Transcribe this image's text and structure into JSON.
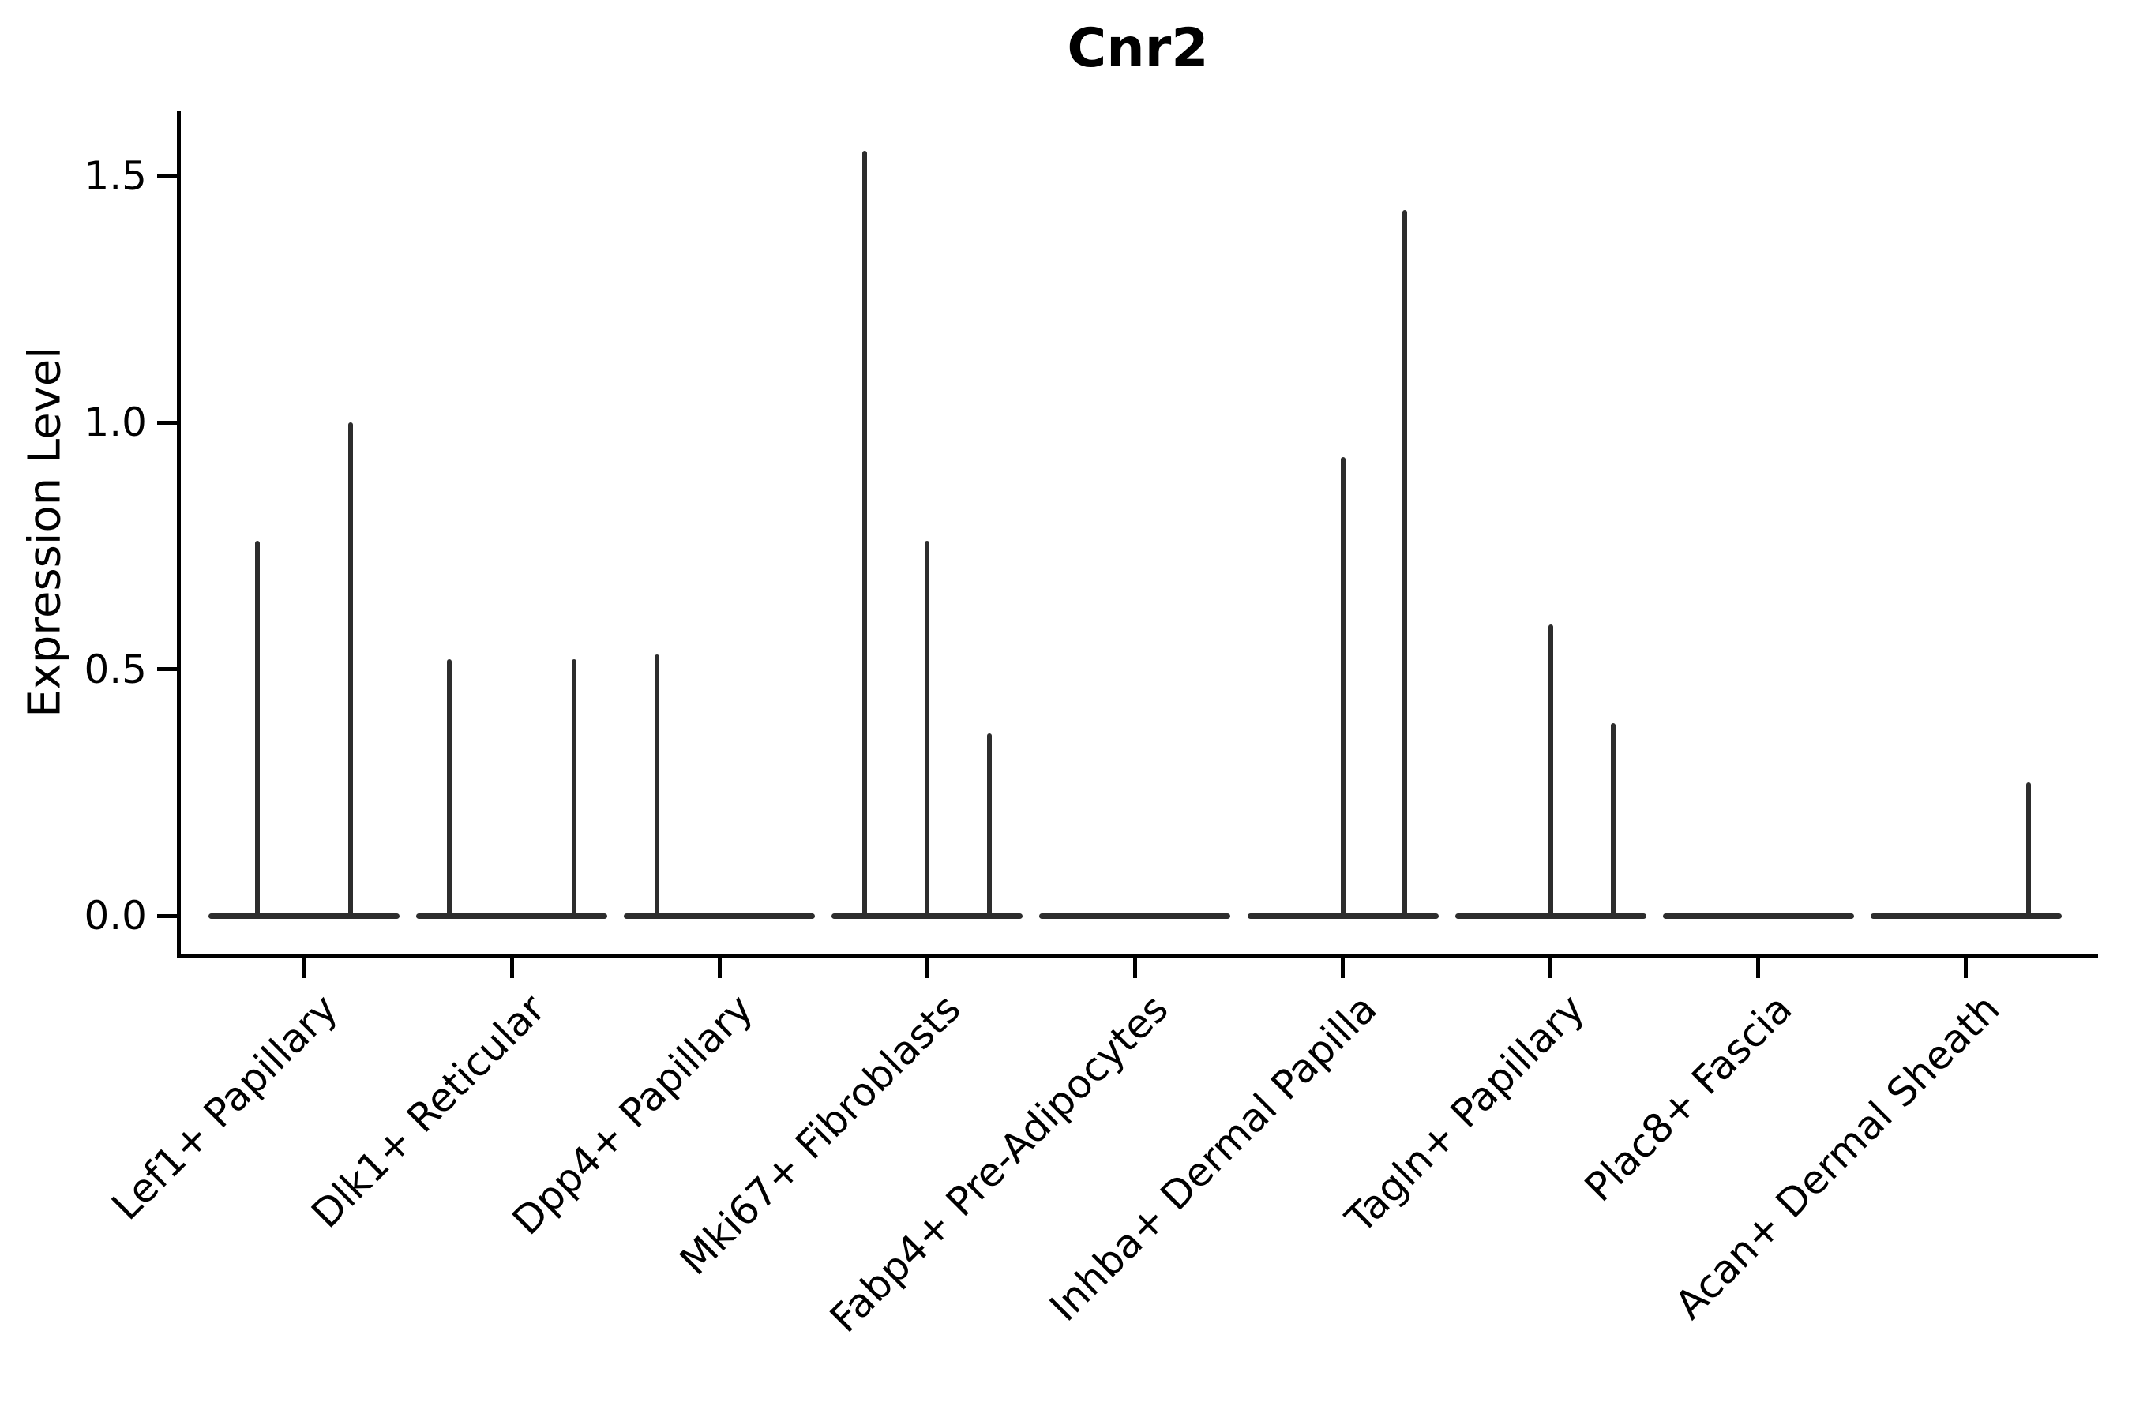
{
  "figure": {
    "background_color": "#ffffff",
    "axis_color": "#000000",
    "violin_color": "#2d2d2d"
  },
  "chart_data": {
    "type": "violin",
    "title": "Cnr2",
    "xlabel": "",
    "ylabel": "Expression Level",
    "legend_position": "none",
    "grid": false,
    "ylim": [
      -0.08,
      1.63
    ],
    "ytick_labels": [
      "0.0",
      "0.5",
      "1.0",
      "1.5"
    ],
    "ytick_values": [
      0.0,
      0.5,
      1.0,
      1.5
    ],
    "categories": [
      "Lef1+ Papillary",
      "Dlk1+ Reticular",
      "Dpp4+ Papillary",
      "Mki67+ Fibroblasts",
      "Fabp4+ Pre-Adipocytes",
      "Inhba+ Dermal Papilla",
      "Tagln+ Papillary",
      "Plac8+ Fascia",
      "Acan+ Dermal Sheath"
    ],
    "violins": [
      {
        "category": "Lef1+ Papillary",
        "baseline_value": 0,
        "spikes": [
          {
            "offset": -0.225,
            "max_expression": 0.76
          },
          {
            "offset": 0.225,
            "max_expression": 1.0
          }
        ]
      },
      {
        "category": "Dlk1+ Reticular",
        "baseline_value": 0,
        "spikes": [
          {
            "offset": -0.3,
            "max_expression": 0.52
          },
          {
            "offset": 0.3,
            "max_expression": 0.52
          }
        ]
      },
      {
        "category": "Dpp4+ Papillary",
        "baseline_value": 0,
        "spikes": [
          {
            "offset": -0.3,
            "max_expression": 0.53
          }
        ]
      },
      {
        "category": "Mki67+ Fibroblasts",
        "baseline_value": 0,
        "spikes": [
          {
            "offset": -0.3,
            "max_expression": 1.55
          },
          {
            "offset": 0.0,
            "max_expression": 0.76
          },
          {
            "offset": 0.3,
            "max_expression": 0.37
          }
        ]
      },
      {
        "category": "Fabp4+ Pre-Adipocytes",
        "baseline_value": 0,
        "spikes": []
      },
      {
        "category": "Inhba+ Dermal Papilla",
        "baseline_value": 0,
        "spikes": [
          {
            "offset": 0.0,
            "max_expression": 0.93
          },
          {
            "offset": 0.3,
            "max_expression": 1.43
          }
        ]
      },
      {
        "category": "Tagln+ Papillary",
        "baseline_value": 0,
        "spikes": [
          {
            "offset": 0.0,
            "max_expression": 0.59
          },
          {
            "offset": 0.3,
            "max_expression": 0.39
          }
        ]
      },
      {
        "category": "Plac8+ Fascia",
        "baseline_value": 0,
        "spikes": []
      },
      {
        "category": "Acan+ Dermal Sheath",
        "baseline_value": 0,
        "spikes": [
          {
            "offset": 0.3,
            "max_expression": 0.27
          }
        ]
      }
    ]
  }
}
